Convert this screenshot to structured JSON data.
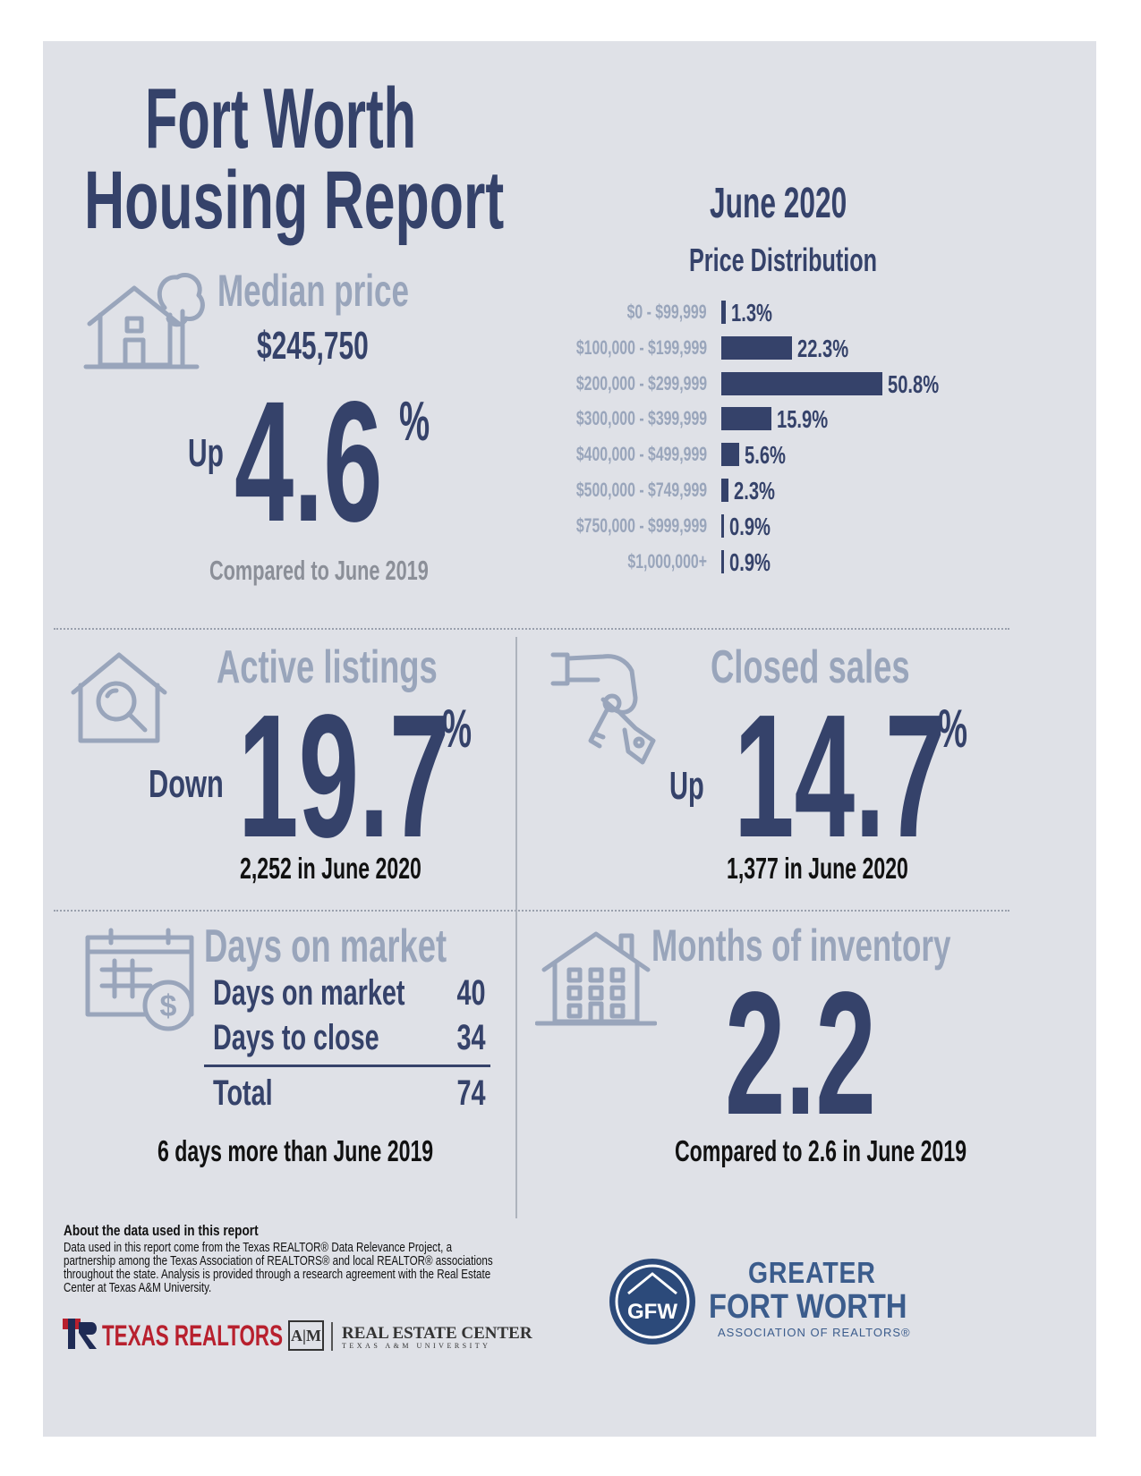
{
  "header": {
    "title_line1": "Fort Worth",
    "title_line2": "Housing Report",
    "period": "June 2020"
  },
  "median_price": {
    "label": "Median price",
    "value": "$245,750",
    "direction": "Up",
    "change": "4.6",
    "unit": "%",
    "note": "Compared to June 2019",
    "icon": "house-tree-icon"
  },
  "price_distribution": {
    "title": "Price Distribution",
    "rows": [
      {
        "range": "$0 - $99,999",
        "value": 1.3,
        "label": "1.3%"
      },
      {
        "range": "$100,000 - $199,999",
        "value": 22.3,
        "label": "22.3%"
      },
      {
        "range": "$200,000 - $299,999",
        "value": 50.8,
        "label": "50.8%"
      },
      {
        "range": "$300,000 - $399,999",
        "value": 15.9,
        "label": "15.9%"
      },
      {
        "range": "$400,000 - $499,999",
        "value": 5.6,
        "label": "5.6%"
      },
      {
        "range": "$500,000 - $749,999",
        "value": 2.3,
        "label": "2.3%"
      },
      {
        "range": "$750,000 - $999,999",
        "value": 0.9,
        "label": "0.9%"
      },
      {
        "range": "$1,000,000+",
        "value": 0.9,
        "label": "0.9%"
      }
    ]
  },
  "active_listings": {
    "label": "Active listings",
    "direction": "Down",
    "change": "19.7",
    "unit": "%",
    "note": "2,252 in June 2020",
    "icon": "house-search-icon"
  },
  "closed_sales": {
    "label": "Closed sales",
    "direction": "Up",
    "change": "14.7",
    "unit": "%",
    "note": "1,377 in June 2020",
    "icon": "hand-keys-icon"
  },
  "days_on_market": {
    "label": "Days on market",
    "rows": [
      {
        "name": "Days on market",
        "value": "40"
      },
      {
        "name": "Days to close",
        "value": "34"
      }
    ],
    "total_label": "Total",
    "total_value": "74",
    "note": "6 days more than June 2019",
    "icon": "calendar-dollar-icon"
  },
  "months_inventory": {
    "label": "Months of inventory",
    "value": "2.2",
    "note": "Compared to 2.6 in June 2019",
    "icon": "apartment-building-icon"
  },
  "footer": {
    "heading": "About the data used in this report",
    "body": "Data used in this report come from the Texas REALTOR® Data Relevance Project, a partnership among the Texas Association of REALTORS® and local REALTOR® associations throughout the state. Analysis is provided through a research agreement with the Real Estate Center at Texas A&M University.",
    "logo_texas": "TEXAS REALTORS",
    "logo_rec": "REAL ESTATE CENTER",
    "logo_rec_sub": "TEXAS A&M UNIVERSITY",
    "logo_gfw_line1": "GREATER",
    "logo_gfw_line2": "FORT WORTH",
    "logo_gfw_line3": "ASSOCIATION OF REALTORS®",
    "logo_gfw_mark": "GFW"
  },
  "colors": {
    "navy": "#35426a",
    "muted_blue": "#99a5bb",
    "panel": "#dfe1e7",
    "gfw_blue": "#3b5c8c"
  }
}
